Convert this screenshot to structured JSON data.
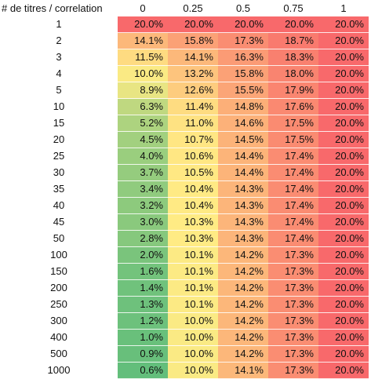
{
  "header": {
    "corner_label": "# de titres / correlation"
  },
  "chart_data": {
    "type": "heatmap",
    "xlabel": "correlation",
    "ylabel": "# de titres",
    "columns": [
      "0",
      "0.25",
      "0.5",
      "0.75",
      "1"
    ],
    "rows": [
      "1",
      "2",
      "3",
      "4",
      "5",
      "10",
      "15",
      "20",
      "25",
      "30",
      "35",
      "40",
      "45",
      "50",
      "100",
      "150",
      "200",
      "250",
      "300",
      "400",
      "500",
      "1000"
    ],
    "values": [
      [
        "20.0%",
        "20.0%",
        "20.0%",
        "20.0%",
        "20.0%"
      ],
      [
        "14.1%",
        "15.8%",
        "17.3%",
        "18.7%",
        "20.0%"
      ],
      [
        "11.5%",
        "14.1%",
        "16.3%",
        "18.3%",
        "20.0%"
      ],
      [
        "10.0%",
        "13.2%",
        "15.8%",
        "18.0%",
        "20.0%"
      ],
      [
        "8.9%",
        "12.6%",
        "15.5%",
        "17.9%",
        "20.0%"
      ],
      [
        "6.3%",
        "11.4%",
        "14.8%",
        "17.6%",
        "20.0%"
      ],
      [
        "5.2%",
        "11.0%",
        "14.6%",
        "17.5%",
        "20.0%"
      ],
      [
        "4.5%",
        "10.7%",
        "14.5%",
        "17.5%",
        "20.0%"
      ],
      [
        "4.0%",
        "10.6%",
        "14.4%",
        "17.4%",
        "20.0%"
      ],
      [
        "3.7%",
        "10.5%",
        "14.4%",
        "17.4%",
        "20.0%"
      ],
      [
        "3.4%",
        "10.4%",
        "14.3%",
        "17.4%",
        "20.0%"
      ],
      [
        "3.2%",
        "10.4%",
        "14.3%",
        "17.4%",
        "20.0%"
      ],
      [
        "3.0%",
        "10.3%",
        "14.3%",
        "17.4%",
        "20.0%"
      ],
      [
        "2.8%",
        "10.3%",
        "14.3%",
        "17.4%",
        "20.0%"
      ],
      [
        "2.0%",
        "10.1%",
        "14.2%",
        "17.3%",
        "20.0%"
      ],
      [
        "1.6%",
        "10.1%",
        "14.2%",
        "17.3%",
        "20.0%"
      ],
      [
        "1.4%",
        "10.1%",
        "14.2%",
        "17.3%",
        "20.0%"
      ],
      [
        "1.3%",
        "10.1%",
        "14.2%",
        "17.3%",
        "20.0%"
      ],
      [
        "1.2%",
        "10.0%",
        "14.2%",
        "17.3%",
        "20.0%"
      ],
      [
        "1.0%",
        "10.0%",
        "14.2%",
        "17.3%",
        "20.0%"
      ],
      [
        "0.9%",
        "10.0%",
        "14.2%",
        "17.3%",
        "20.0%"
      ],
      [
        "0.6%",
        "10.0%",
        "14.1%",
        "17.3%",
        "20.0%"
      ]
    ],
    "color_scale": {
      "low": "#63be7b",
      "mid": "#ffeb84",
      "high": "#f8696b"
    }
  }
}
